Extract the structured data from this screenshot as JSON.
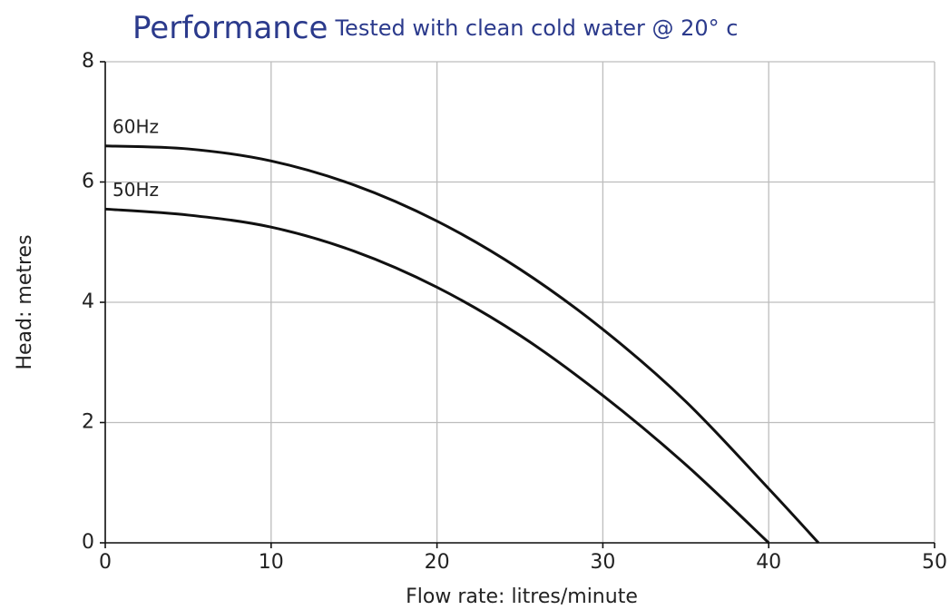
{
  "chart_data": {
    "type": "line",
    "title": "Performance",
    "subtitle": "Tested with clean cold water @ 20° c",
    "x_label": "Flow rate: litres/minute",
    "y_label": "Head: metres",
    "x": [
      0,
      5,
      10,
      15,
      20,
      25,
      30,
      35,
      40,
      43
    ],
    "series": [
      {
        "name": "60Hz",
        "color": "#111111",
        "values": [
          6.6,
          6.55,
          6.35,
          5.95,
          5.35,
          4.55,
          3.55,
          2.35,
          0.9,
          0
        ]
      },
      {
        "name": "50Hz",
        "color": "#111111",
        "values": [
          5.55,
          5.45,
          5.25,
          4.85,
          4.25,
          3.45,
          2.45,
          1.3,
          0,
          null
        ]
      }
    ],
    "xlim": [
      0,
      50
    ],
    "xticks": [
      0,
      10,
      20,
      30,
      40,
      50
    ],
    "ylim": [
      0,
      8
    ],
    "yticks": [
      0,
      2,
      4,
      6,
      8
    ],
    "grid": true
  }
}
